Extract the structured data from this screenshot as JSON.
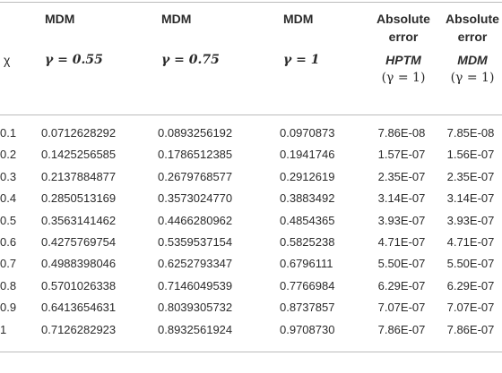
{
  "table": {
    "header": [
      "MDM",
      "MDM",
      "MDM",
      "Absolute error",
      "Absolute error"
    ],
    "subheader": {
      "variable": "χ",
      "columns": [
        "γ = 0.55",
        "γ = 0.75",
        "γ = 1"
      ],
      "errors": [
        {
          "name": "HPTM",
          "param": "(γ = 1)"
        },
        {
          "name": "MDM",
          "param": "(γ = 1)"
        }
      ]
    },
    "rows": [
      [
        "0.1",
        "0.0712628292",
        "0.0893256192",
        "0.0970873",
        "7.86E-08",
        "7.85E-08"
      ],
      [
        "0.2",
        "0.1425256585",
        "0.1786512385",
        "0.1941746",
        "1.57E-07",
        "1.56E-07"
      ],
      [
        "0.3",
        "0.2137884877",
        "0.2679768577",
        "0.2912619",
        "2.35E-07",
        "2.35E-07"
      ],
      [
        "0.4",
        "0.2850513169",
        "0.3573024770",
        "0.3883492",
        "3.14E-07",
        "3.14E-07"
      ],
      [
        "0.5",
        "0.3563141462",
        "0.4466280962",
        "0.4854365",
        "3.93E-07",
        "3.93E-07"
      ],
      [
        "0.6",
        "0.4275769754",
        "0.5359537154",
        "0.5825238",
        "4.71E-07",
        "4.71E-07"
      ],
      [
        "0.7",
        "0.4988398046",
        "0.6252793347",
        "0.6796111",
        "5.50E-07",
        "5.50E-07"
      ],
      [
        "0.8",
        "0.5701026338",
        "0.7146049539",
        "0.7766984",
        "6.29E-07",
        "6.29E-07"
      ],
      [
        "0.9",
        "0.6413654631",
        "0.8039305732",
        "0.8737857",
        "7.07E-07",
        "7.07E-07"
      ],
      [
        "1",
        "0.7126282923",
        "0.8932561924",
        "0.9708730",
        "7.86E-07",
        "7.86E-07"
      ]
    ]
  }
}
